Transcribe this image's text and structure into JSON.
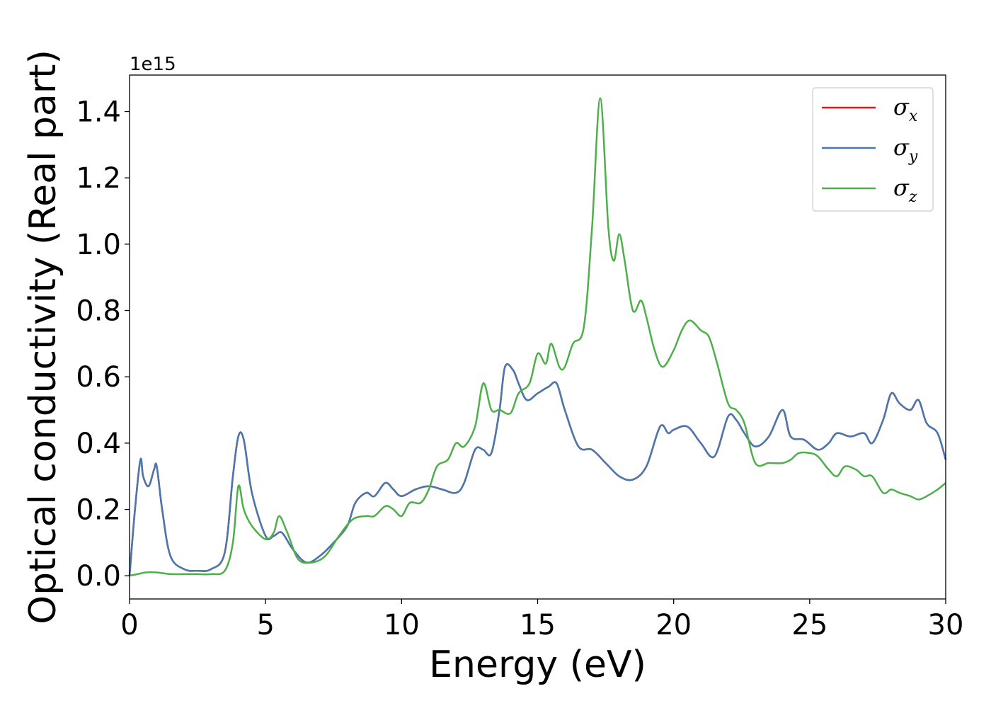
{
  "chart_data": {
    "type": "line",
    "xlabel": "Energy (eV)",
    "ylabel": "Optical conductivity (Real part)",
    "y_offset_label": "1e15",
    "xlim": [
      0,
      30
    ],
    "ylim": [
      -0.07,
      1.51
    ],
    "x_ticks": [
      0,
      5,
      10,
      15,
      20,
      25,
      30
    ],
    "x_tick_labels": [
      "0",
      "5",
      "10",
      "15",
      "20",
      "25",
      "30"
    ],
    "y_ticks": [
      0.0,
      0.2,
      0.4,
      0.6,
      0.8,
      1.0,
      1.2,
      1.4
    ],
    "y_tick_labels": [
      "0.0",
      "0.2",
      "0.4",
      "0.6",
      "0.8",
      "1.0",
      "1.2",
      "1.4"
    ],
    "grid": false,
    "legend_position": "top-right",
    "series": [
      {
        "name": "σ",
        "sub": "x",
        "color": "#e41a1c",
        "x": [
          0,
          0.2,
          0.4,
          0.5,
          0.7,
          0.9,
          1.0,
          1.2,
          1.5,
          2.0,
          2.5,
          3.0,
          3.5,
          3.8,
          4.0,
          4.2,
          4.5,
          5.0,
          5.3,
          5.6,
          6.0,
          6.5,
          7.0,
          7.5,
          8.0,
          8.3,
          8.7,
          9.0,
          9.4,
          9.7,
          10.0,
          10.5,
          11.0,
          11.5,
          12.0,
          12.3,
          12.7,
          13.0,
          13.3,
          13.6,
          13.8,
          14.1,
          14.3,
          14.6,
          15.0,
          15.4,
          15.7,
          16.0,
          16.5,
          17.0,
          17.5,
          18.0,
          18.5,
          19.0,
          19.5,
          19.8,
          20.0,
          20.5,
          21.0,
          21.5,
          22.0,
          22.3,
          22.6,
          23.0,
          23.5,
          24.0,
          24.3,
          24.8,
          25.3,
          25.7,
          26.0,
          26.5,
          27.0,
          27.3,
          27.7,
          28.0,
          28.3,
          28.7,
          29.0,
          29.3,
          29.7,
          30.0
        ],
        "y": [
          0.0,
          0.2,
          0.35,
          0.3,
          0.27,
          0.32,
          0.33,
          0.2,
          0.06,
          0.02,
          0.015,
          0.02,
          0.07,
          0.3,
          0.42,
          0.41,
          0.25,
          0.12,
          0.12,
          0.13,
          0.08,
          0.04,
          0.06,
          0.1,
          0.15,
          0.22,
          0.25,
          0.24,
          0.28,
          0.26,
          0.24,
          0.26,
          0.27,
          0.26,
          0.25,
          0.28,
          0.38,
          0.38,
          0.37,
          0.5,
          0.63,
          0.62,
          0.58,
          0.53,
          0.55,
          0.57,
          0.58,
          0.5,
          0.39,
          0.38,
          0.34,
          0.3,
          0.29,
          0.33,
          0.45,
          0.43,
          0.44,
          0.45,
          0.4,
          0.36,
          0.48,
          0.47,
          0.43,
          0.39,
          0.42,
          0.5,
          0.42,
          0.41,
          0.38,
          0.4,
          0.43,
          0.42,
          0.43,
          0.4,
          0.47,
          0.55,
          0.52,
          0.5,
          0.53,
          0.46,
          0.43,
          0.35
        ]
      },
      {
        "name": "σ",
        "sub": "y",
        "color": "#4878b0",
        "x": [
          0,
          0.2,
          0.4,
          0.5,
          0.7,
          0.9,
          1.0,
          1.2,
          1.5,
          2.0,
          2.5,
          3.0,
          3.5,
          3.8,
          4.0,
          4.2,
          4.5,
          5.0,
          5.3,
          5.6,
          6.0,
          6.5,
          7.0,
          7.5,
          8.0,
          8.3,
          8.7,
          9.0,
          9.4,
          9.7,
          10.0,
          10.5,
          11.0,
          11.5,
          12.0,
          12.3,
          12.7,
          13.0,
          13.3,
          13.6,
          13.8,
          14.1,
          14.3,
          14.6,
          15.0,
          15.4,
          15.7,
          16.0,
          16.5,
          17.0,
          17.5,
          18.0,
          18.5,
          19.0,
          19.5,
          19.8,
          20.0,
          20.5,
          21.0,
          21.5,
          22.0,
          22.3,
          22.6,
          23.0,
          23.5,
          24.0,
          24.3,
          24.8,
          25.3,
          25.7,
          26.0,
          26.5,
          27.0,
          27.3,
          27.7,
          28.0,
          28.3,
          28.7,
          29.0,
          29.3,
          29.7,
          30.0
        ],
        "y": [
          0.0,
          0.2,
          0.35,
          0.3,
          0.27,
          0.32,
          0.33,
          0.2,
          0.06,
          0.02,
          0.015,
          0.02,
          0.07,
          0.3,
          0.42,
          0.41,
          0.25,
          0.12,
          0.12,
          0.13,
          0.08,
          0.04,
          0.06,
          0.1,
          0.15,
          0.22,
          0.25,
          0.24,
          0.28,
          0.26,
          0.24,
          0.26,
          0.27,
          0.26,
          0.25,
          0.28,
          0.38,
          0.38,
          0.37,
          0.5,
          0.63,
          0.62,
          0.58,
          0.53,
          0.55,
          0.57,
          0.58,
          0.5,
          0.39,
          0.38,
          0.34,
          0.3,
          0.29,
          0.33,
          0.45,
          0.43,
          0.44,
          0.45,
          0.4,
          0.36,
          0.48,
          0.47,
          0.43,
          0.39,
          0.42,
          0.5,
          0.42,
          0.41,
          0.38,
          0.4,
          0.43,
          0.42,
          0.43,
          0.4,
          0.47,
          0.55,
          0.52,
          0.5,
          0.53,
          0.46,
          0.43,
          0.35
        ]
      },
      {
        "name": "σ",
        "sub": "z",
        "color": "#4daf4a",
        "x": [
          0,
          0.3,
          0.6,
          1.0,
          1.5,
          2.0,
          2.5,
          3.0,
          3.5,
          3.8,
          4.0,
          4.2,
          4.5,
          5.0,
          5.3,
          5.5,
          5.8,
          6.2,
          6.7,
          7.2,
          7.7,
          8.2,
          8.7,
          9.0,
          9.4,
          9.7,
          10.0,
          10.3,
          10.7,
          11.0,
          11.3,
          11.7,
          12.0,
          12.3,
          12.7,
          13.0,
          13.3,
          13.6,
          14.0,
          14.3,
          14.7,
          15.0,
          15.3,
          15.5,
          15.8,
          16.0,
          16.3,
          16.7,
          17.0,
          17.3,
          17.6,
          17.8,
          18.0,
          18.2,
          18.5,
          18.8,
          19.0,
          19.3,
          19.6,
          20.0,
          20.3,
          20.6,
          21.0,
          21.3,
          21.6,
          22.0,
          22.3,
          22.6,
          23.0,
          23.5,
          24.0,
          24.3,
          24.6,
          25.0,
          25.3,
          25.7,
          26.0,
          26.3,
          26.7,
          27.0,
          27.3,
          27.7,
          28.0,
          28.3,
          28.7,
          29.0,
          29.3,
          29.7,
          30.0
        ],
        "y": [
          0.0,
          0.005,
          0.01,
          0.01,
          0.005,
          0.005,
          0.005,
          0.005,
          0.015,
          0.1,
          0.27,
          0.2,
          0.15,
          0.11,
          0.13,
          0.18,
          0.13,
          0.05,
          0.04,
          0.06,
          0.12,
          0.17,
          0.18,
          0.18,
          0.21,
          0.2,
          0.18,
          0.22,
          0.22,
          0.26,
          0.33,
          0.35,
          0.4,
          0.39,
          0.45,
          0.58,
          0.5,
          0.5,
          0.49,
          0.55,
          0.58,
          0.67,
          0.64,
          0.7,
          0.63,
          0.63,
          0.7,
          0.75,
          1.05,
          1.44,
          1.05,
          0.95,
          1.03,
          0.95,
          0.8,
          0.83,
          0.78,
          0.68,
          0.63,
          0.68,
          0.74,
          0.77,
          0.74,
          0.72,
          0.64,
          0.52,
          0.5,
          0.46,
          0.34,
          0.34,
          0.34,
          0.35,
          0.37,
          0.37,
          0.36,
          0.32,
          0.3,
          0.33,
          0.32,
          0.3,
          0.3,
          0.25,
          0.26,
          0.25,
          0.24,
          0.23,
          0.24,
          0.26,
          0.28
        ]
      }
    ]
  }
}
